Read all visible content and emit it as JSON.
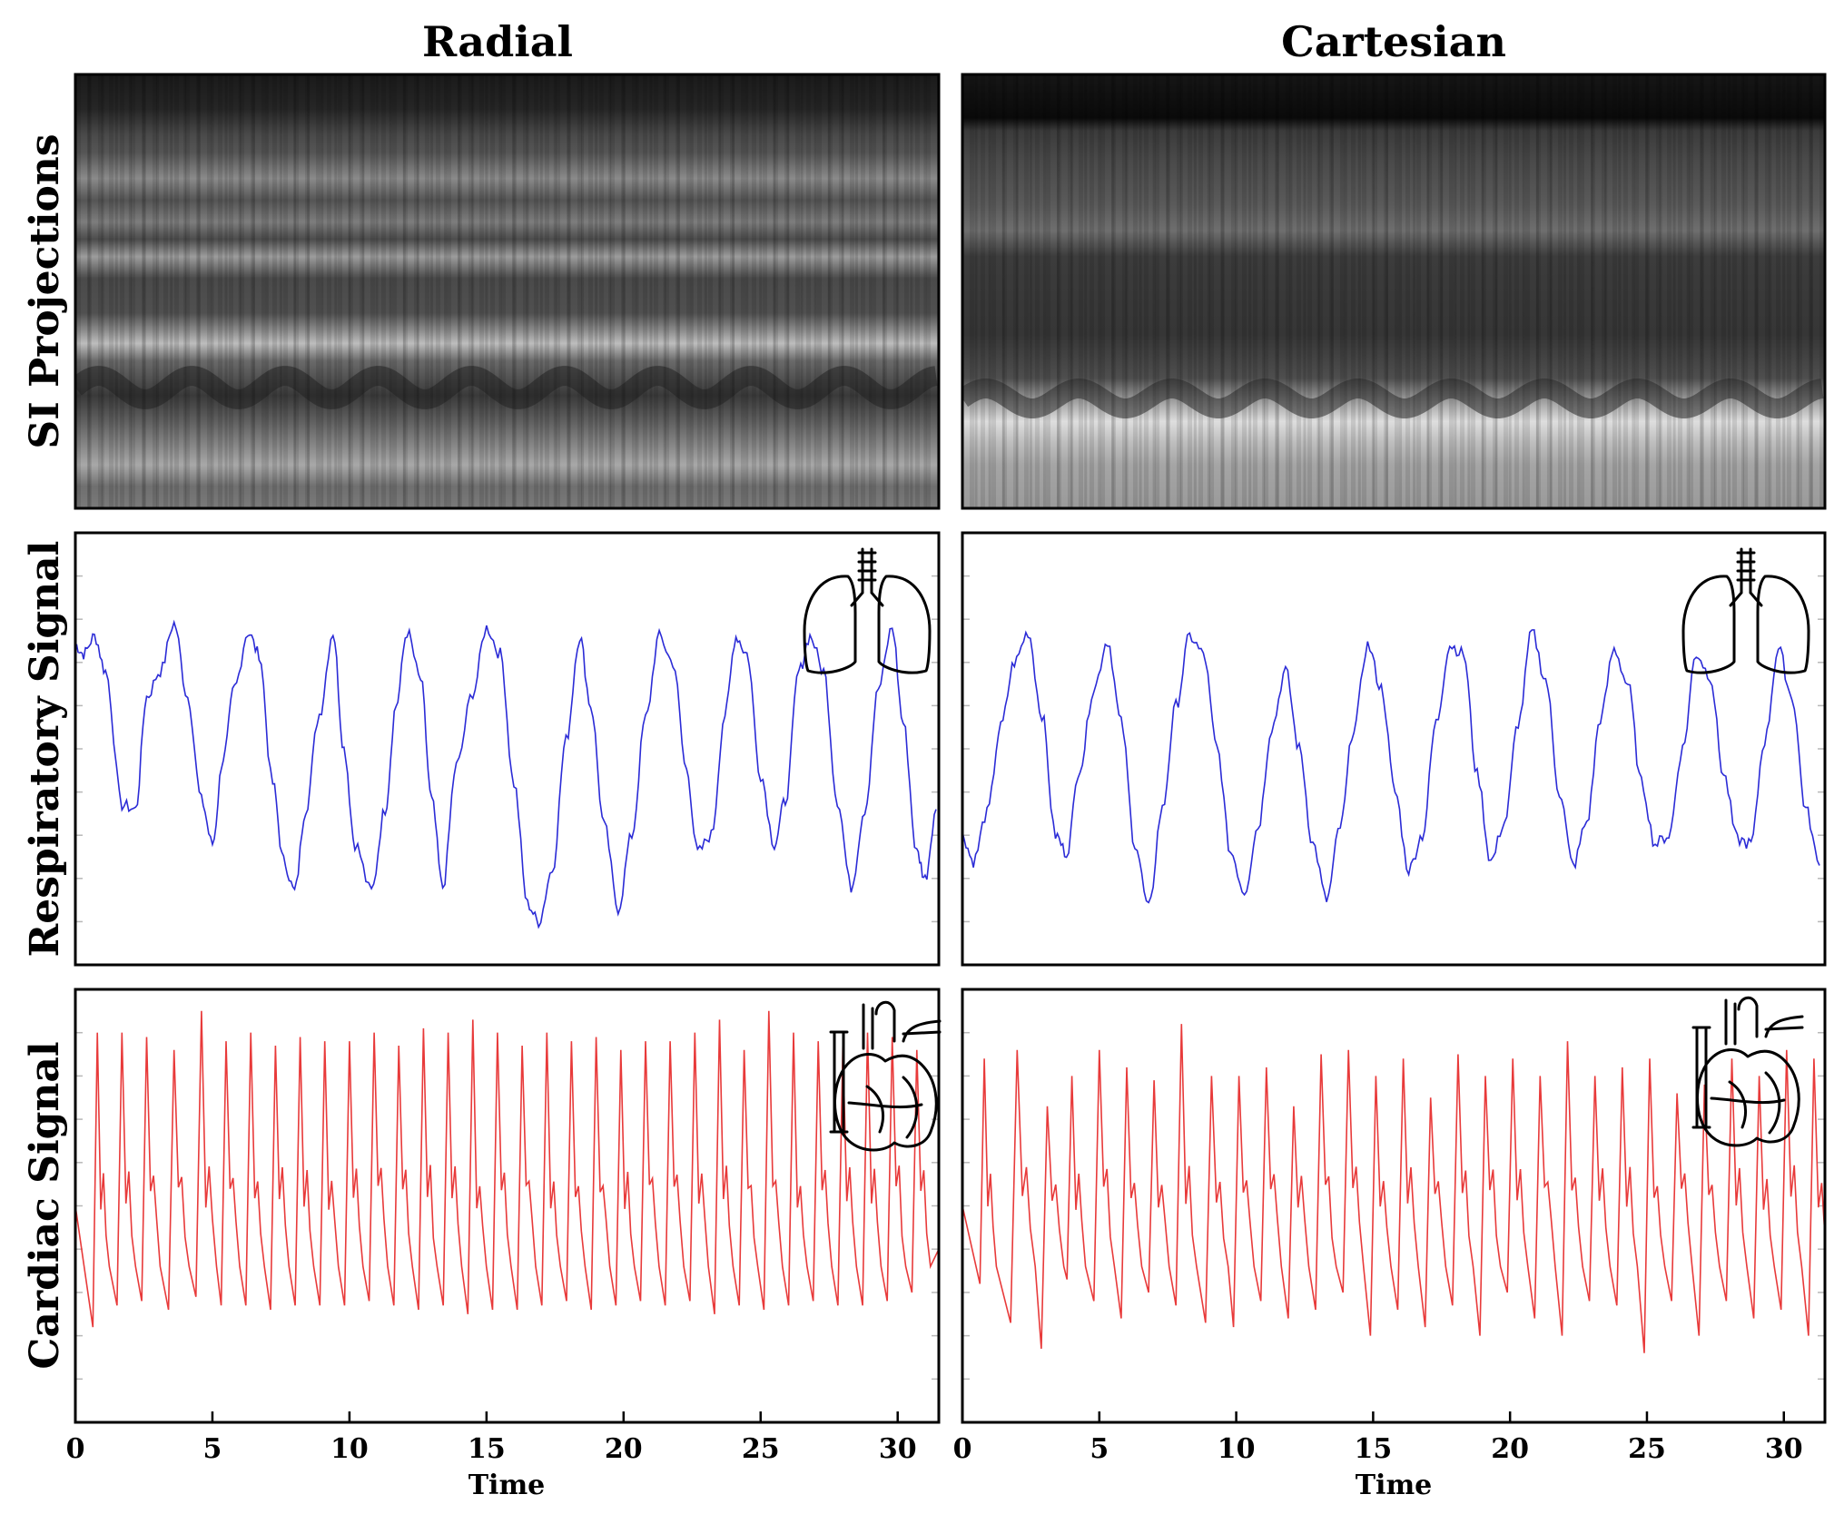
{
  "columns": [
    {
      "title": "Radial"
    },
    {
      "title": "Cartesian"
    }
  ],
  "rows": [
    {
      "title": "SI Projections"
    },
    {
      "title": "Respiratory Signal"
    },
    {
      "title": "Cardiac Signal"
    }
  ],
  "xaxis": {
    "label": "Time",
    "range": [
      0,
      31.5
    ],
    "ticks": [
      "0",
      "5",
      "10",
      "15",
      "20",
      "25",
      "30"
    ]
  },
  "colors": {
    "respiratory": "#2b2bd6",
    "cardiac": "#e83a3a",
    "frame": "#000000"
  },
  "icons": {
    "respiratory": "lungs-icon",
    "cardiac": "heart-icon"
  },
  "chart_data": [
    {
      "type": "heatmap",
      "panel": "Radial SI Projections",
      "description_values": "grayscale projection intensity vs time",
      "xlim": [
        0,
        31.5
      ],
      "grid": false
    },
    {
      "type": "heatmap",
      "panel": "Cartesian SI Projections",
      "xlim": [
        0,
        31.5
      ],
      "grid": false
    },
    {
      "type": "line",
      "panel": "Radial Respiratory Signal",
      "color": "#2b2bd6",
      "xlim": [
        0,
        31.5
      ],
      "ylim": [
        0,
        1
      ],
      "x": [
        0,
        0.3,
        0.7,
        1.1,
        1.7,
        2.2,
        2.6,
        3.1,
        3.6,
        4.1,
        4.6,
        5.0,
        5.4,
        5.8,
        6.3,
        6.7,
        7.2,
        7.6,
        8.0,
        8.4,
        8.9,
        9.4,
        9.8,
        10.2,
        10.8,
        11.3,
        11.7,
        12.1,
        12.6,
        13.0,
        13.4,
        13.9,
        14.5,
        15.0,
        15.5,
        16.0,
        16.5,
        16.9,
        17.4,
        17.9,
        18.4,
        18.8,
        19.3,
        19.8,
        20.3,
        20.8,
        21.3,
        21.8,
        22.3,
        22.7,
        23.2,
        23.7,
        24.1,
        24.5,
        25.0,
        25.5,
        25.9,
        26.4,
        26.8,
        27.3,
        27.8,
        28.3,
        28.8,
        29.3,
        29.8,
        30.2,
        30.7,
        31.0,
        31.4
      ],
      "y": [
        0.74,
        0.72,
        0.76,
        0.68,
        0.37,
        0.36,
        0.62,
        0.68,
        0.79,
        0.62,
        0.38,
        0.28,
        0.48,
        0.64,
        0.77,
        0.72,
        0.42,
        0.24,
        0.17,
        0.36,
        0.58,
        0.77,
        0.5,
        0.28,
        0.17,
        0.36,
        0.6,
        0.77,
        0.66,
        0.38,
        0.18,
        0.46,
        0.63,
        0.78,
        0.72,
        0.42,
        0.14,
        0.1,
        0.22,
        0.52,
        0.76,
        0.6,
        0.32,
        0.13,
        0.3,
        0.57,
        0.76,
        0.7,
        0.45,
        0.26,
        0.3,
        0.58,
        0.76,
        0.72,
        0.44,
        0.28,
        0.38,
        0.68,
        0.76,
        0.68,
        0.38,
        0.18,
        0.36,
        0.64,
        0.78,
        0.56,
        0.26,
        0.2,
        0.36
      ],
      "grid": false
    },
    {
      "type": "line",
      "panel": "Cartesian Respiratory Signal",
      "color": "#2b2bd6",
      "xlim": [
        0,
        31.5
      ],
      "ylim": [
        0,
        1
      ],
      "x": [
        0,
        0.4,
        0.9,
        1.4,
        1.9,
        2.4,
        2.9,
        3.4,
        3.8,
        4.3,
        4.8,
        5.3,
        5.8,
        6.3,
        6.8,
        7.3,
        7.8,
        8.3,
        8.8,
        9.3,
        9.8,
        10.3,
        10.8,
        11.3,
        11.8,
        12.3,
        12.8,
        13.3,
        13.8,
        14.3,
        14.8,
        15.3,
        15.8,
        16.3,
        16.8,
        17.3,
        17.8,
        18.3,
        18.8,
        19.3,
        19.8,
        20.3,
        20.8,
        21.3,
        21.8,
        22.3,
        22.8,
        23.3,
        23.8,
        24.3,
        24.8,
        25.3,
        25.8,
        26.3,
        26.8,
        27.3,
        27.8,
        28.3,
        28.8,
        29.3,
        29.8,
        30.3,
        30.8,
        31.3
      ],
      "y": [
        0.3,
        0.24,
        0.35,
        0.55,
        0.7,
        0.77,
        0.58,
        0.3,
        0.26,
        0.46,
        0.64,
        0.75,
        0.56,
        0.28,
        0.13,
        0.36,
        0.6,
        0.76,
        0.72,
        0.5,
        0.26,
        0.17,
        0.32,
        0.55,
        0.68,
        0.5,
        0.28,
        0.15,
        0.32,
        0.55,
        0.74,
        0.64,
        0.4,
        0.22,
        0.3,
        0.56,
        0.74,
        0.72,
        0.44,
        0.24,
        0.33,
        0.56,
        0.77,
        0.66,
        0.4,
        0.23,
        0.33,
        0.57,
        0.73,
        0.65,
        0.42,
        0.28,
        0.3,
        0.5,
        0.72,
        0.67,
        0.44,
        0.29,
        0.28,
        0.52,
        0.73,
        0.62,
        0.36,
        0.23
      ],
      "grid": false
    },
    {
      "type": "line",
      "panel": "Radial Cardiac Signal",
      "color": "#e83a3a",
      "xlim": [
        0,
        31.5
      ],
      "ylim": [
        0,
        1
      ],
      "peak_times": [
        0.8,
        1.7,
        2.6,
        3.6,
        4.6,
        5.5,
        6.4,
        7.3,
        8.2,
        9.1,
        10.0,
        10.9,
        11.8,
        12.7,
        13.6,
        14.5,
        15.4,
        16.3,
        17.2,
        18.1,
        19.0,
        19.9,
        20.8,
        21.7,
        22.6,
        23.5,
        24.4,
        25.3,
        26.2,
        27.1,
        28.0,
        28.9,
        29.8,
        30.7
      ],
      "peak_values": [
        0.9,
        0.9,
        0.89,
        0.86,
        0.95,
        0.88,
        0.9,
        0.87,
        0.89,
        0.88,
        0.88,
        0.9,
        0.87,
        0.91,
        0.9,
        0.93,
        0.9,
        0.87,
        0.9,
        0.88,
        0.89,
        0.86,
        0.88,
        0.88,
        0.9,
        0.93,
        0.86,
        0.95,
        0.9,
        0.88,
        0.87,
        0.9,
        0.89,
        0.86
      ],
      "trough_values": [
        0.22,
        0.27,
        0.28,
        0.26,
        0.29,
        0.27,
        0.27,
        0.26,
        0.27,
        0.27,
        0.27,
        0.28,
        0.27,
        0.26,
        0.27,
        0.25,
        0.26,
        0.26,
        0.27,
        0.28,
        0.26,
        0.27,
        0.28,
        0.27,
        0.28,
        0.25,
        0.27,
        0.26,
        0.27,
        0.28,
        0.27,
        0.27,
        0.28,
        0.3
      ],
      "grid": false
    },
    {
      "type": "line",
      "panel": "Cartesian Cardiac Signal",
      "color": "#e83a3a",
      "xlim": [
        0,
        31.5
      ],
      "ylim": [
        0,
        1
      ],
      "peak_times": [
        0.8,
        2.0,
        3.1,
        4.0,
        5.0,
        6.0,
        7.0,
        8.0,
        9.1,
        10.1,
        11.1,
        12.1,
        13.1,
        14.1,
        15.1,
        16.1,
        17.1,
        18.1,
        19.1,
        20.1,
        21.1,
        22.1,
        23.1,
        24.1,
        25.1,
        26.1,
        27.1,
        28.1,
        29.1,
        30.1,
        31.1
      ],
      "peak_values": [
        0.84,
        0.86,
        0.73,
        0.8,
        0.86,
        0.82,
        0.79,
        0.92,
        0.8,
        0.8,
        0.82,
        0.73,
        0.85,
        0.86,
        0.8,
        0.84,
        0.75,
        0.85,
        0.8,
        0.84,
        0.8,
        0.88,
        0.8,
        0.82,
        0.84,
        0.76,
        0.78,
        0.84,
        0.8,
        0.86,
        0.84
      ],
      "trough_values": [
        0.32,
        0.23,
        0.17,
        0.33,
        0.28,
        0.24,
        0.3,
        0.27,
        0.23,
        0.22,
        0.28,
        0.24,
        0.26,
        0.3,
        0.2,
        0.26,
        0.22,
        0.27,
        0.2,
        0.3,
        0.24,
        0.2,
        0.28,
        0.27,
        0.16,
        0.28,
        0.2,
        0.28,
        0.24,
        0.26,
        0.2
      ],
      "grid": false
    }
  ]
}
